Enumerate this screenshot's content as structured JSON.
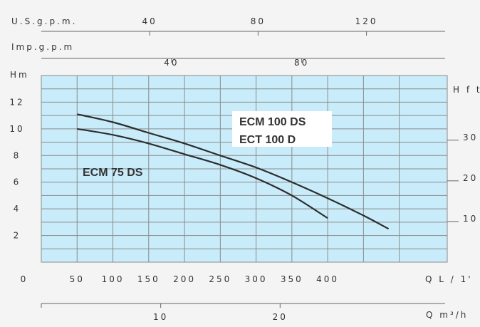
{
  "chart_data": {
    "type": "line",
    "colors": {
      "plot_bg": "#c9ecfb",
      "grid": "#8a8a8a",
      "curve": "#2d2d2d",
      "label_bg": "#ffffff"
    },
    "grid": true,
    "axes": {
      "top_usgpm": {
        "label": "U.S.g.p.m.",
        "ticks": [
          "40",
          "80",
          "120"
        ],
        "tick_values": [
          40,
          80,
          120
        ],
        "range": [
          0,
          149.8
        ]
      },
      "top_impgpm": {
        "label": "Imp.g.p.m",
        "ticks": [
          "40",
          "80"
        ],
        "tick_values": [
          40,
          80
        ],
        "range": [
          0,
          124.7
        ]
      },
      "left_hm": {
        "label": "Hm",
        "ticks": [
          "12",
          "10",
          "8",
          "6",
          "4",
          "2"
        ],
        "tick_values": [
          12,
          10,
          8,
          6,
          4,
          2
        ],
        "range": [
          0,
          14
        ]
      },
      "right_hft": {
        "label": "H f t",
        "ticks": [
          "30",
          "20",
          "10"
        ],
        "tick_values": [
          30,
          20,
          10
        ],
        "range": [
          0,
          45.9
        ]
      },
      "bottom_q_lmin": {
        "label": "Q L / 1'",
        "origin_label": "0",
        "ticks": [
          "50",
          "100",
          "150",
          "200",
          "250",
          "300",
          "350",
          "400"
        ],
        "tick_values": [
          50,
          100,
          150,
          200,
          250,
          300,
          350,
          400
        ],
        "range": [
          0,
          567
        ]
      },
      "bottom_q_m3h": {
        "label": "Q m³/h",
        "ticks": [
          "10",
          "20"
        ],
        "tick_values": [
          10,
          20
        ],
        "range": [
          0,
          34
        ]
      }
    },
    "series": [
      {
        "labels": [
          "ECM 75 DS"
        ],
        "x": [
          50,
          100,
          150,
          200,
          250,
          300,
          350,
          400
        ],
        "y": [
          10.0,
          9.55,
          8.9,
          8.1,
          7.3,
          6.3,
          5.0,
          3.3
        ]
      },
      {
        "labels": [
          "ECM 100 DS",
          "ECT  100 D"
        ],
        "x": [
          50,
          100,
          150,
          200,
          250,
          300,
          350,
          400,
          450,
          485
        ],
        "y": [
          11.1,
          10.5,
          9.7,
          8.9,
          8.0,
          7.1,
          6.0,
          4.8,
          3.5,
          2.5
        ]
      }
    ]
  }
}
